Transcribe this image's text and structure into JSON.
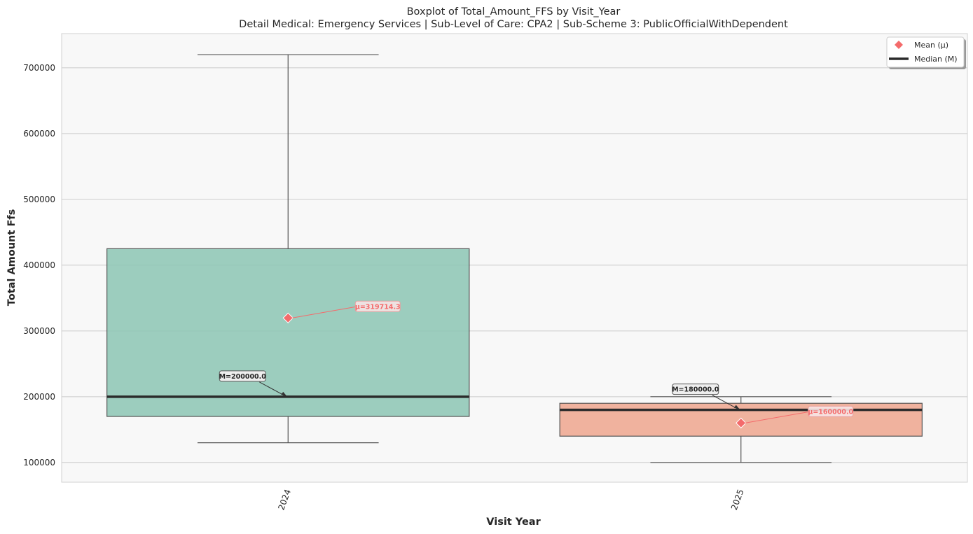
{
  "chart_data": {
    "type": "box",
    "title": "Boxplot of Total_Amount_FFS by Visit_Year",
    "subtitle": "Detail Medical: Emergency Services | Sub-Level of Care: CPA2 | Sub-Scheme 3: PublicOfficialWithDependent",
    "xlabel": "Visit Year",
    "ylabel": "Total Amount Ffs",
    "ylim": [
      70000,
      752000
    ],
    "yticks": [
      100000,
      200000,
      300000,
      400000,
      500000,
      600000,
      700000
    ],
    "ytick_labels": [
      "100000",
      "200000",
      "300000",
      "400000",
      "500000",
      "600000",
      "700000"
    ],
    "grid": "horizontal",
    "categories": [
      "2024",
      "2025"
    ],
    "boxes": [
      {
        "category": "2024",
        "whisker_low": 130000,
        "q1": 170000,
        "median": 200000,
        "q3": 425000,
        "whisker_high": 720000,
        "mean": 319714.3,
        "color": "#8cc5b4",
        "median_label": "M=200000.0",
        "mean_label": "μ=319714.3"
      },
      {
        "category": "2025",
        "whisker_low": 100000,
        "q1": 140000,
        "median": 180000,
        "q3": 190000,
        "whisker_high": 200000,
        "mean": 160000.0,
        "color": "#eea68e",
        "median_label": "M=180000.0",
        "mean_label": "μ=160000.0"
      }
    ],
    "legend": {
      "placement": "top-right",
      "entries": [
        {
          "label": "Mean (μ)",
          "marker": "diamond",
          "color": "#f46b6b"
        },
        {
          "label": "Median (M)",
          "marker": "line",
          "color": "#2b2b2b"
        }
      ]
    },
    "colors": {
      "plot_bg": "#f8f8f8",
      "grid": "#cccccc",
      "mean": "#f46b6b",
      "median": "#2b2b2b",
      "whisker": "#555555"
    }
  }
}
